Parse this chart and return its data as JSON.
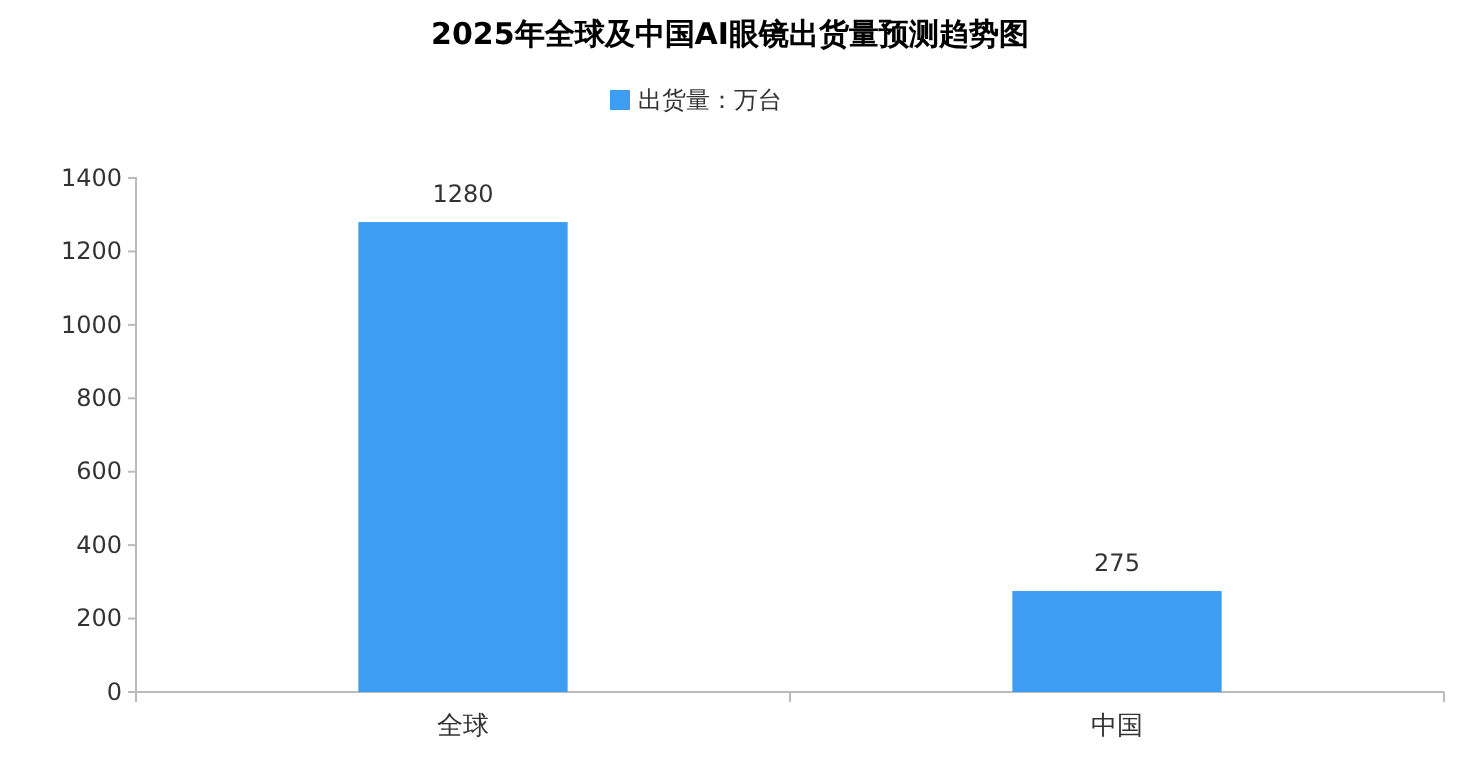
{
  "chart_data": {
    "type": "bar",
    "title": "2025年全球及中国AI眼镜出货量预测趋势图",
    "categories": [
      "全球",
      "中国"
    ],
    "series": [
      {
        "name": "出货量：万台",
        "color": "#3d9df2",
        "values": [
          1280,
          275
        ]
      }
    ],
    "ylim": [
      0,
      1400
    ],
    "yticks": [
      0,
      200,
      400,
      600,
      800,
      1000,
      1200,
      1400
    ],
    "data_labels": true,
    "grid": false,
    "legend": "top"
  }
}
